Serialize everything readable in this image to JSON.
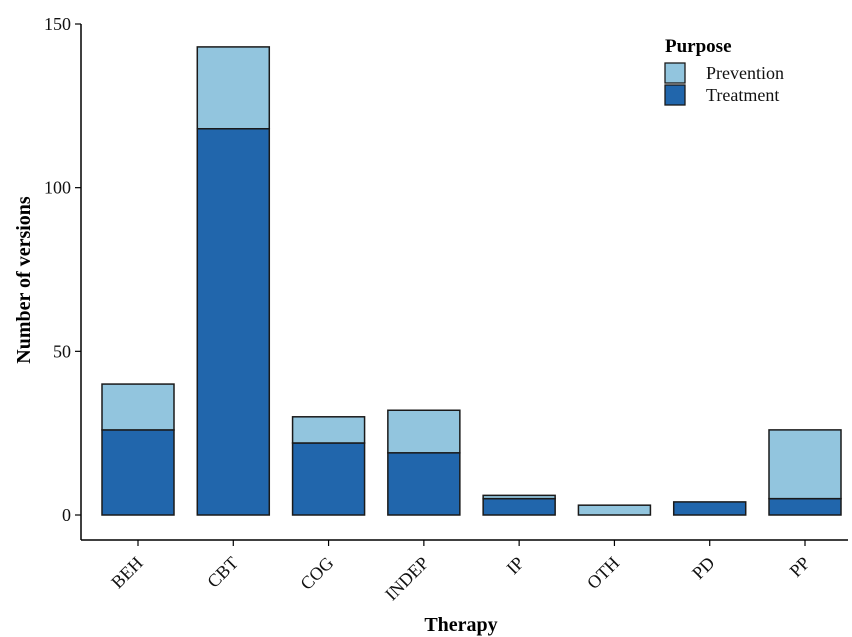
{
  "chart_data": {
    "type": "bar",
    "stacked": true,
    "title": "",
    "xlabel": "Therapy",
    "ylabel": "Number of versions",
    "categories": [
      "BEH",
      "CBT",
      "COG",
      "INDEP",
      "IP",
      "OTH",
      "PD",
      "PP"
    ],
    "series": [
      {
        "name": "Treatment",
        "color": "#2166ac",
        "values": [
          26,
          118,
          22,
          19,
          5,
          0,
          4,
          5
        ]
      },
      {
        "name": "Prevention",
        "color": "#92c5de",
        "values": [
          14,
          25,
          8,
          13,
          1,
          3,
          0,
          21
        ]
      }
    ],
    "ylim": [
      0,
      150
    ],
    "yticks": [
      0,
      50,
      100,
      150
    ],
    "grid": false,
    "legend": {
      "title": "Purpose",
      "placement": "top-right",
      "entries": [
        "Prevention",
        "Treatment"
      ]
    }
  }
}
